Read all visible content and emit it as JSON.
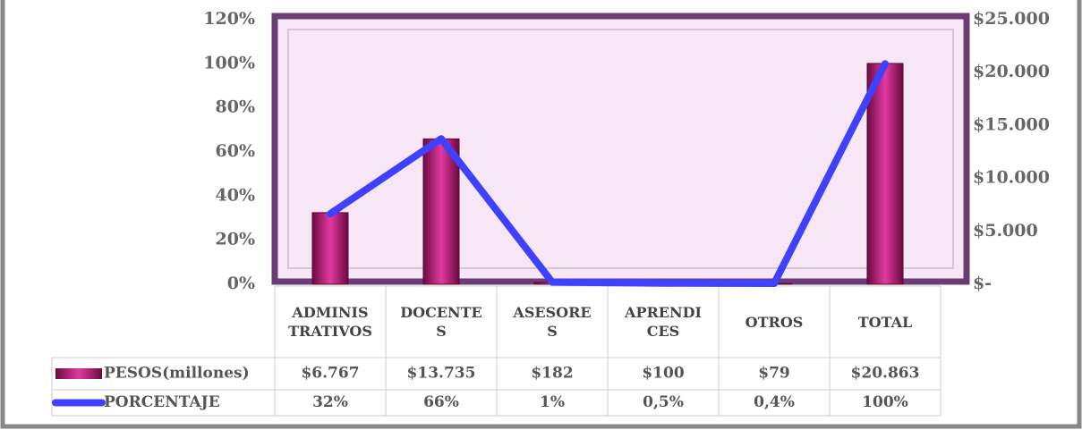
{
  "chart_data": {
    "type": "bar_line",
    "categories": [
      "ADMINISTRATIVOS",
      "DOCENTES",
      "ASESORES",
      "APRENDICES",
      "OTROS",
      "TOTAL"
    ],
    "series": [
      {
        "name": "PESOS(millones)",
        "type": "bar",
        "axis": "y2",
        "color": "#c0187f",
        "values": [
          6767,
          13735,
          182,
          100,
          79,
          20863
        ],
        "value_labels": [
          "$6.767",
          "$13.735",
          "$182",
          "$100",
          "$79",
          "$20.863"
        ]
      },
      {
        "name": "PORCENTAJE",
        "type": "line",
        "axis": "y",
        "color": "#4040ff",
        "values": [
          32,
          66,
          1,
          0.5,
          0.4,
          100
        ],
        "value_labels": [
          "32%",
          "66%",
          "1%",
          "0,5%",
          "0,4%",
          "100%"
        ]
      }
    ],
    "ylim": [
      0,
      120
    ],
    "yticks": [
      {
        "value": 0,
        "label": "0%"
      },
      {
        "value": 20,
        "label": "20%"
      },
      {
        "value": 40,
        "label": "40%"
      },
      {
        "value": 60,
        "label": "60%"
      },
      {
        "value": 80,
        "label": "80%"
      },
      {
        "value": 100,
        "label": "100%"
      },
      {
        "value": 120,
        "label": "120%"
      }
    ],
    "y2lim": [
      0,
      25000
    ],
    "y2ticks": [
      {
        "value": 0,
        "label": "$-"
      },
      {
        "value": 5000,
        "label": "$5.000"
      },
      {
        "value": 10000,
        "label": "$10.000"
      },
      {
        "value": 15000,
        "label": "$15.000"
      },
      {
        "value": 20000,
        "label": "$20.000"
      },
      {
        "value": 25000,
        "label": "$25.000"
      }
    ]
  }
}
